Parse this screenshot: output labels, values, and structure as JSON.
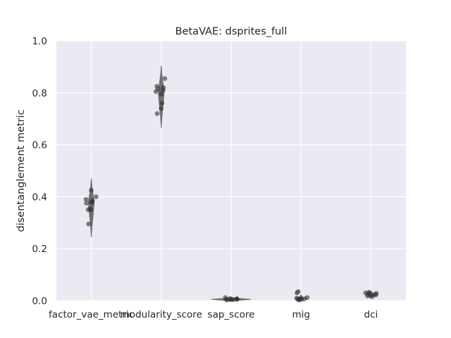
{
  "chart_data": {
    "type": "violin-strip",
    "title": "BetaVAE: dsprites_full",
    "xlabel": "",
    "ylabel": "disentanglement metric",
    "ylim": [
      0.0,
      1.0
    ],
    "yticks": [
      "0.0",
      "0.2",
      "0.4",
      "0.6",
      "0.8",
      "1.0"
    ],
    "grid": true,
    "colors": {
      "background": "#eaeaf2",
      "grid": "#ffffff",
      "violin": "#6b6b6b",
      "violin_accent": "#5f8f8f",
      "point": "#333333"
    },
    "categories": [
      "factor_vae_metric",
      "modularity_score",
      "sap_score",
      "mig",
      "dci"
    ],
    "series": [
      {
        "category": "factor_vae_metric",
        "violin": {
          "min": 0.245,
          "max": 0.47,
          "q1": 0.35,
          "median": 0.378,
          "q3": 0.395
        },
        "values": [
          0.425,
          0.378,
          0.375,
          0.35,
          0.35,
          0.38,
          0.39,
          0.4,
          0.385,
          0.355,
          0.295
        ]
      },
      {
        "category": "modularity_score",
        "violin": {
          "min": 0.665,
          "max": 0.905,
          "q1": 0.78,
          "median": 0.8,
          "q3": 0.815
        },
        "values": [
          0.855,
          0.81,
          0.805,
          0.795,
          0.815,
          0.82,
          0.825,
          0.76,
          0.74,
          0.72
        ]
      },
      {
        "category": "sap_score",
        "violin": {
          "min": 0.001,
          "max": 0.011,
          "q1": 0.003,
          "median": 0.005,
          "q3": 0.007
        },
        "values": [
          0.012,
          0.007,
          0.006,
          0.005,
          0.004,
          0.006,
          0.003,
          0.008,
          0.005,
          0.004
        ]
      },
      {
        "category": "mig",
        "violin": {
          "min": 0.0,
          "max": 0.022,
          "q1": 0.004,
          "median": 0.007,
          "q3": 0.01
        },
        "values": [
          0.035,
          0.03,
          0.012,
          0.008,
          0.006,
          0.005,
          0.004,
          0.01,
          0.007,
          0.003
        ]
      },
      {
        "category": "dci",
        "violin": {
          "min": 0.008,
          "max": 0.036,
          "q1": 0.017,
          "median": 0.022,
          "q3": 0.027
        },
        "values": [
          0.032,
          0.03,
          0.028,
          0.025,
          0.022,
          0.02,
          0.018,
          0.016,
          0.03,
          0.024
        ]
      }
    ]
  }
}
